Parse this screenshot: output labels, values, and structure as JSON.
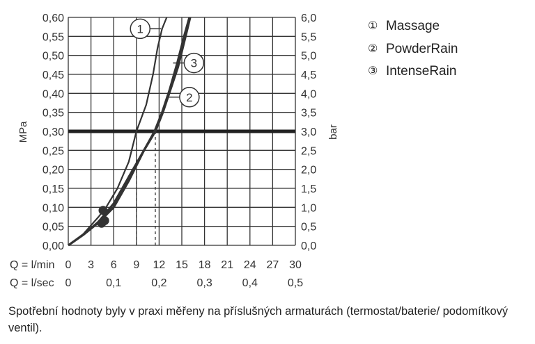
{
  "chart_data": {
    "type": "line",
    "left_axis_label": "MPa",
    "right_axis_label": "bar",
    "left_ticks": [
      "0,00",
      "0,05",
      "0,10",
      "0,15",
      "0,20",
      "0,25",
      "0,30",
      "0,35",
      "0,40",
      "0,45",
      "0,50",
      "0,55",
      "0,60"
    ],
    "right_ticks": [
      "0,0",
      "0,5",
      "1,0",
      "1,5",
      "2,0",
      "2,5",
      "3,0",
      "3,5",
      "4,0",
      "4,5",
      "5,0",
      "5,5",
      "6,0"
    ],
    "ylim": [
      0,
      0.6
    ],
    "xlim": [
      0,
      30
    ],
    "x_row_lmin": {
      "label": "Q = l/min",
      "ticks": [
        "0",
        "3",
        "6",
        "9",
        "12",
        "15",
        "18",
        "21",
        "24",
        "27",
        "30"
      ],
      "values": [
        0,
        3,
        6,
        9,
        12,
        15,
        18,
        21,
        24,
        27,
        30
      ]
    },
    "x_row_lsec": {
      "label": "Q = l/sec",
      "ticks": [
        "0",
        "0,1",
        "0,2",
        "0,3",
        "0,4",
        "0,5"
      ],
      "values": [
        0,
        0.1,
        0.2,
        0.3,
        0.4,
        0.5
      ]
    },
    "reference_line": 0.3,
    "reference_flows": [
      9.0,
      11.5
    ],
    "series": [
      {
        "name": "Massage",
        "marker": "①",
        "label_at": [
          9.5,
          0.57
        ],
        "points": [
          [
            0,
            0
          ],
          [
            2,
            0.03
          ],
          [
            4,
            0.075
          ],
          [
            5,
            0.1
          ],
          [
            6.5,
            0.15
          ],
          [
            8,
            0.22
          ],
          [
            9,
            0.3
          ],
          [
            10.3,
            0.37
          ],
          [
            11.2,
            0.45
          ],
          [
            11.8,
            0.52
          ],
          [
            12.4,
            0.57
          ],
          [
            13,
            0.6
          ]
        ]
      },
      {
        "name": "PowderRain",
        "marker": "②",
        "label_at": [
          16,
          0.39
        ],
        "points": [
          [
            0,
            0
          ],
          [
            2,
            0.028
          ],
          [
            4,
            0.06
          ],
          [
            6,
            0.1
          ],
          [
            8,
            0.17
          ],
          [
            10,
            0.25
          ],
          [
            11.5,
            0.3
          ],
          [
            12.5,
            0.35
          ],
          [
            13.5,
            0.41
          ],
          [
            14.5,
            0.47
          ],
          [
            15.5,
            0.55
          ],
          [
            16.1,
            0.6
          ]
        ]
      },
      {
        "name": "IntenseRain",
        "marker": "③",
        "label_at": [
          16.6,
          0.48
        ],
        "points": [
          [
            0,
            0
          ],
          [
            2,
            0.028
          ],
          [
            4,
            0.062
          ],
          [
            6,
            0.11
          ],
          [
            8,
            0.18
          ],
          [
            10,
            0.25
          ],
          [
            11.4,
            0.3
          ],
          [
            12.4,
            0.35
          ],
          [
            13.4,
            0.41
          ],
          [
            14.4,
            0.48
          ],
          [
            15.3,
            0.55
          ],
          [
            16,
            0.6
          ]
        ]
      }
    ],
    "dots": [
      {
        "x": 4.6,
        "y": 0.092
      },
      {
        "x": 4.8,
        "y": 0.065
      },
      {
        "x": 4.4,
        "y": 0.058
      }
    ],
    "grid": true
  },
  "legend": {
    "items": [
      {
        "num": "①",
        "name": "Massage"
      },
      {
        "num": "②",
        "name": "PowderRain"
      },
      {
        "num": "③",
        "name": "IntenseRain"
      }
    ]
  },
  "caption": "Spotřební hodnoty byly v praxi měřeny na příslušných armaturách (termostat/baterie/ podomítkový ventil)."
}
